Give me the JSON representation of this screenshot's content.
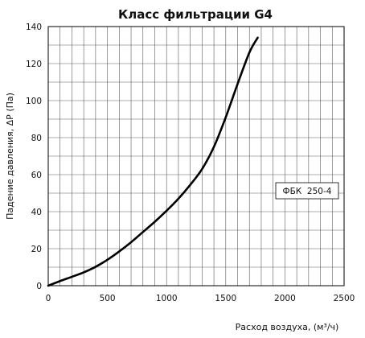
{
  "chart_data": {
    "type": "line",
    "title": "Класс фильтрации G4",
    "xlabel": "Расход воздуха, (м³/ч)",
    "ylabel": "Падение давления, ΔP (Па)",
    "xlim": [
      0,
      2500
    ],
    "ylim": [
      0,
      140
    ],
    "x_ticks": [
      "0",
      "500",
      "1000",
      "1500",
      "2000",
      "2500"
    ],
    "y_ticks": [
      "0",
      "20",
      "40",
      "60",
      "80",
      "100",
      "120",
      "140"
    ],
    "grid": true,
    "legend_position": "right",
    "series": [
      {
        "name": "ФБК  250-4",
        "color": "#000000",
        "x": [
          0,
          100,
          200,
          300,
          400,
          500,
          600,
          700,
          800,
          900,
          1000,
          1100,
          1200,
          1300,
          1400,
          1500,
          1600,
          1700,
          1770
        ],
        "y": [
          0,
          2.5,
          4.8,
          7.2,
          10.2,
          14,
          18.5,
          23.5,
          29,
          34.5,
          40.5,
          47,
          54.5,
          63,
          75,
          91,
          109,
          126,
          134
        ]
      }
    ]
  }
}
